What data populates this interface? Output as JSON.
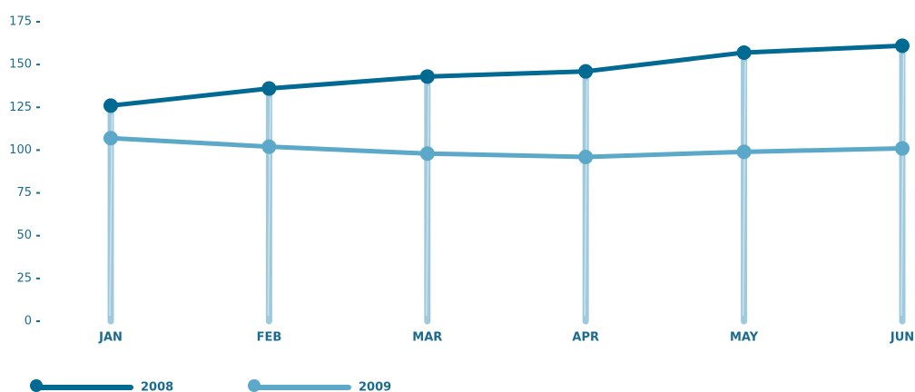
{
  "chart_data": {
    "type": "line",
    "categories": [
      "JAN",
      "FEB",
      "MAR",
      "APR",
      "MAY",
      "JUN"
    ],
    "series": [
      {
        "name": "2008",
        "color": "#006a93",
        "values": [
          126,
          136,
          143,
          146,
          157,
          161
        ]
      },
      {
        "name": "2009",
        "color": "#5ba8c8",
        "values": [
          107,
          102,
          98,
          96,
          99,
          101
        ]
      }
    ],
    "ylim": [
      0,
      175
    ],
    "yticks": [
      0,
      25,
      50,
      75,
      100,
      125,
      150,
      175
    ]
  }
}
